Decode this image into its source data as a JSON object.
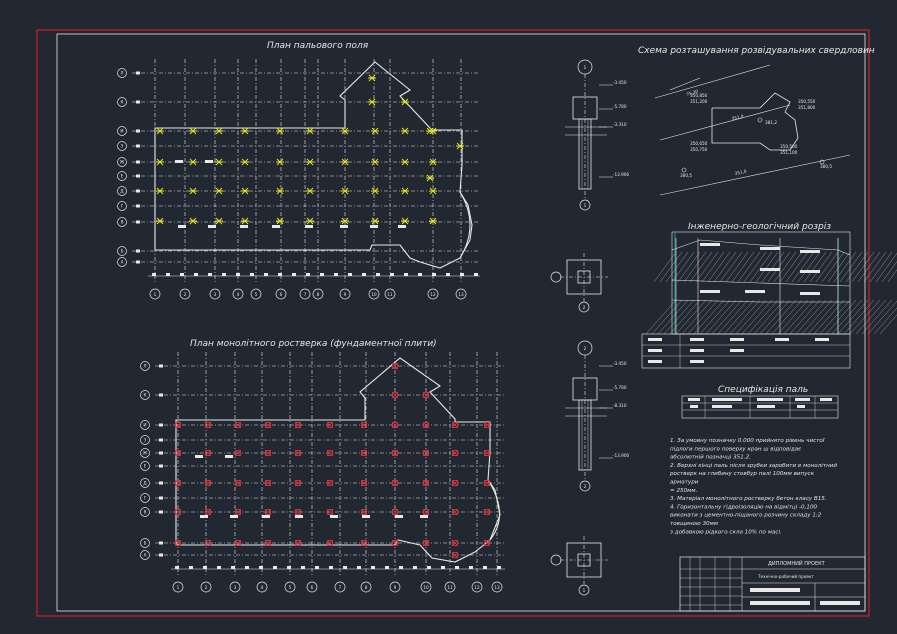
{
  "drawing": {
    "pile_field_title": "План пальового поля",
    "raft_title": "План монолітного ростверка (фундаментної плити)",
    "borehole_title": "Схема розташування розвідувальних свердловин",
    "geology_title": "Інженерно-геологічний розріз",
    "spec_title": "Специфікація паль",
    "notes": [
      "1. За умовну позначку 0.000 прийнято рівень чистої",
      "підлоги першого поверху кран ш  відповідає",
      "абсолютній позначці 351.2.",
      "2. Верхні кінці паль після зрубки заробити  в монолітний",
      "ростверк на глибину стовбур палі 100мм  випуск",
      "арматури",
      "= 250мм.",
      "3. Матеріал монолітного ростверку бетон класу В15.",
      "4. Горизонтальну гідроізоляцію на відмітці -0,100",
      "виконати з цементно-піщаного розчину складу 1:2",
      "товщиною 30мм",
      "з добавкою рідкого скла 10% по масі."
    ],
    "stamp": {
      "project": "ДИПЛОМНИЙ ПРОЕКТ",
      "subtitle": "Технічно-робочий проект"
    },
    "grid_cols": [
      "1",
      "2",
      "3",
      "4",
      "5",
      "6",
      "7",
      "8",
      "9",
      "10",
      "11",
      "12",
      "13"
    ],
    "grid_rows": [
      "Л",
      "К",
      "И",
      "З",
      "Ж",
      "Е",
      "Д",
      "Г",
      "В",
      "Б",
      "А"
    ],
    "section_marks": [
      "1",
      "1",
      "2",
      "2",
      "3",
      "3"
    ],
    "elevations": [
      "-3.450",
      "-5.780",
      "-3.310",
      "-13.900",
      "-3.450",
      "-5.780",
      "-8.310",
      "-13.900"
    ],
    "borehole_labels": [
      "350,850",
      "351,200",
      "350,550",
      "351,800",
      "350,650",
      "350,750",
      "350,500",
      "351,100",
      "380,5",
      "381,2",
      "380,5"
    ],
    "colors": {
      "background": "#222831",
      "sheet_border": "#c8202c",
      "frame": "#e8e8e8",
      "pile_marker": "#e6e61e",
      "raft_marker": "#e0323c",
      "teal": "#18a0a0"
    }
  }
}
